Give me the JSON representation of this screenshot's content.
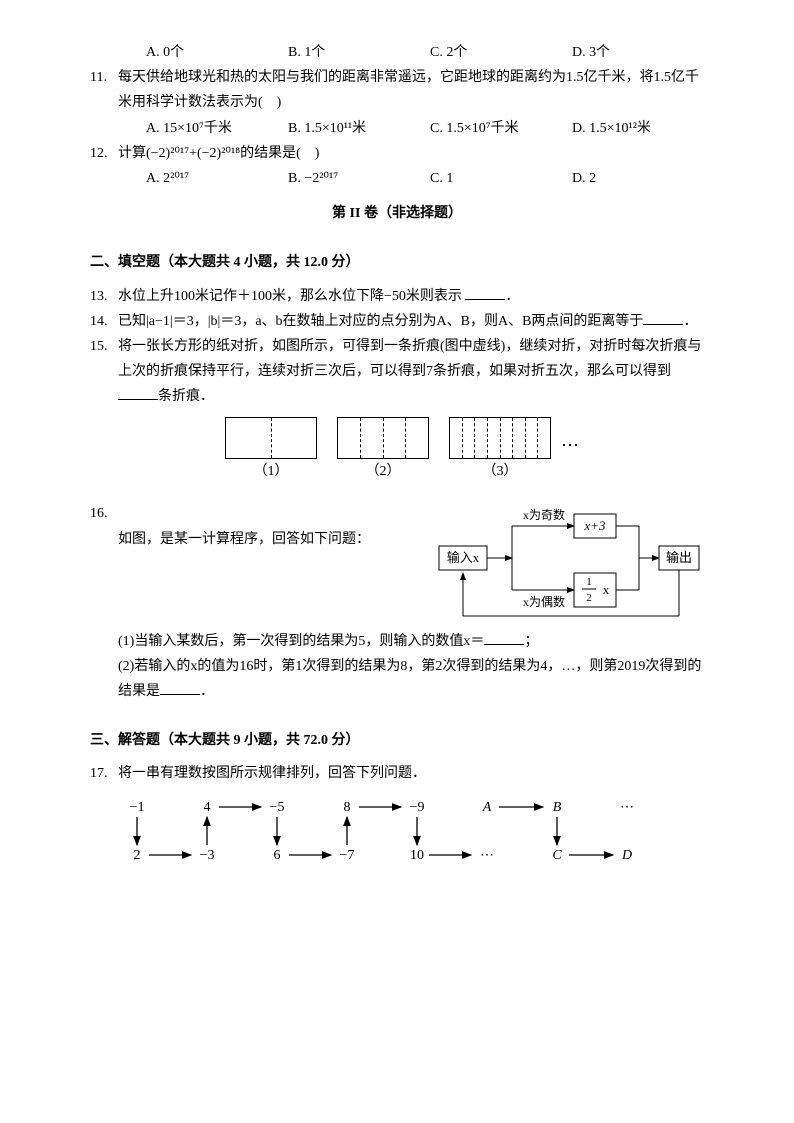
{
  "q10_choices": {
    "a": "A. 0个",
    "b": "B. 1个",
    "c": "C. 2个",
    "d": "D. 3个"
  },
  "q11": {
    "num": "11.",
    "text": "每天供给地球光和热的太阳与我们的距离非常遥远，它距地球的距离约为1.5亿千米，将1.5亿千米用科学计数法表示为(　)",
    "a": "A. 15×10⁷千米",
    "b": "B. 1.5×10¹¹米",
    "c": "C. 1.5×10⁷千米",
    "d": "D. 1.5×10¹²米"
  },
  "q12": {
    "num": "12.",
    "text": "计算(−2)²⁰¹⁷+(−2)²⁰¹⁸的结果是(　)",
    "a": "A. 2²⁰¹⁷",
    "b": "B. −2²⁰¹⁷",
    "c": "C. 1",
    "d": "D. 2"
  },
  "section2_title": "第 II 卷（非选择题）",
  "fill_heading": "二、填空题（本大题共 4 小题，共 12.0 分）",
  "q13": {
    "num": "13.",
    "text_a": "水位上升100米记作＋100米，那么水位下降−50米则表示 ",
    "text_b": "．"
  },
  "q14": {
    "num": "14.",
    "text_a": "已知|a−1|＝3，|b|＝3，a、b在数轴上对应的点分别为A、B，则A、B两点间的距离等于",
    "text_b": "．"
  },
  "q15": {
    "num": "15.",
    "text_a": "将一张长方形的纸对折，如图所示，可得到一条折痕(图中虚线)，继续对折，对折时每次折痕与上次的折痕保持平行，连续对折三次后，可以得到7条折痕，如果对折五次，那么可以得到",
    "text_b": "条折痕．",
    "labels": [
      "（1）",
      "（2）",
      "（3）"
    ],
    "ellipsis": "⋯"
  },
  "q16": {
    "num": "16.",
    "text": "如图，是某一计算程序，回答如下问题：",
    "flow": {
      "input": "输入x",
      "odd": "x为奇数",
      "even": "x为偶数",
      "box1": "x+3",
      "box2half_top": "1",
      "box2half_bot": "2",
      "box2_x": "x",
      "output": "输出"
    },
    "sub1_a": "(1)当输入某数后，第一次得到的结果为5，则输入的数值x＝",
    "sub1_b": "；",
    "sub2_a": "(2)若输入的x的值为16时，第1次得到的结果为8，第2次得到的结果为4，…，则第2019次得到的结果是",
    "sub2_b": "．"
  },
  "solve_heading": "三、解答题（本大题共 9 小题，共 72.0 分）",
  "q17": {
    "num": "17.",
    "text": "将一串有理数按图所示规律排列，回答下列问题．",
    "row1": [
      "−1",
      "4",
      "−5",
      "8",
      "−9",
      "A",
      "B",
      "⋯"
    ],
    "row2": [
      "2",
      "−3",
      "6",
      "−7",
      "10",
      "⋯",
      "C",
      "D"
    ]
  }
}
